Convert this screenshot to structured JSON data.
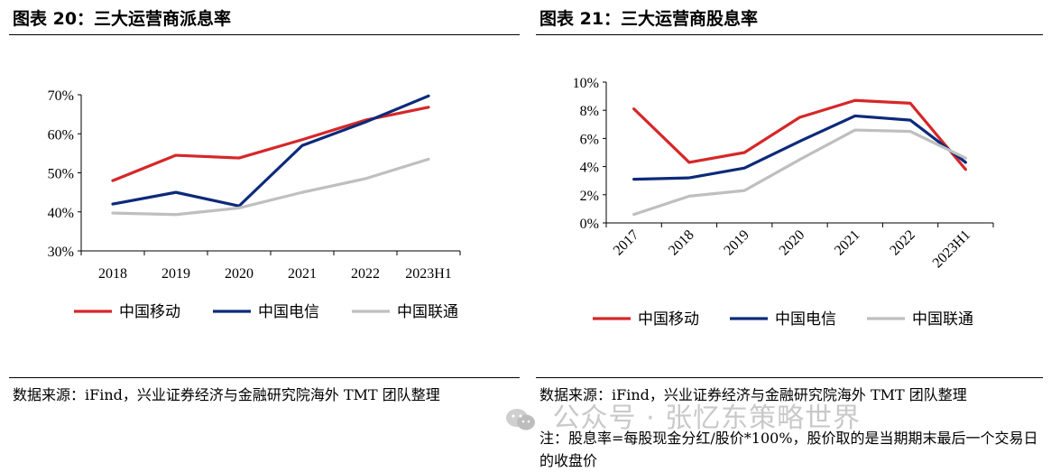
{
  "left_panel": {
    "title": "图表 20：三大运营商派息率",
    "source": "数据来源：iFind，兴业证券经济与金融研究院海外 TMT 团队整理"
  },
  "right_panel": {
    "title": "图表 21：三大运营商股息率",
    "source": "数据来源：iFind，兴业证券经济与金融研究院海外 TMT 团队整理",
    "note": "注：股息率=每股现金分红/股价*100%，股价取的是当期期末最后一个交易日的收盘价"
  },
  "watermark": "公众号 · 张忆东策略世界",
  "chart_data": [
    {
      "type": "line",
      "title": "三大运营商派息率",
      "categories": [
        "2018",
        "2019",
        "2020",
        "2021",
        "2022",
        "2023H1"
      ],
      "ylim": [
        30,
        70
      ],
      "yticks": [
        "30%",
        "40%",
        "50%",
        "60%",
        "70%"
      ],
      "ytick_values": [
        30,
        40,
        50,
        60,
        70
      ],
      "series": [
        {
          "name": "中国移动",
          "color": "#d62728",
          "values": [
            48,
            54.5,
            53.8,
            58.5,
            63.5,
            66.8
          ]
        },
        {
          "name": "中国电信",
          "color": "#0c2a7a",
          "values": [
            42,
            45,
            41.5,
            57,
            63,
            69.7
          ]
        },
        {
          "name": "中国联通",
          "color": "#bfbfbf",
          "values": [
            39.7,
            39.3,
            41,
            45,
            48.5,
            53.5
          ]
        }
      ],
      "legend_position": "bottom"
    },
    {
      "type": "line",
      "title": "三大运营商股息率",
      "categories": [
        "2017",
        "2018",
        "2019",
        "2020",
        "2021",
        "2022",
        "2023H1"
      ],
      "ylim": [
        0,
        10
      ],
      "yticks": [
        "0%",
        "2%",
        "4%",
        "6%",
        "8%",
        "10%"
      ],
      "ytick_values": [
        0,
        2,
        4,
        6,
        8,
        10
      ],
      "series": [
        {
          "name": "中国移动",
          "color": "#d62728",
          "values": [
            8.1,
            4.3,
            5.0,
            7.5,
            8.7,
            8.5,
            3.8
          ]
        },
        {
          "name": "中国电信",
          "color": "#0c2a7a",
          "values": [
            3.1,
            3.2,
            3.9,
            5.8,
            7.6,
            7.3,
            4.3
          ]
        },
        {
          "name": "中国联通",
          "color": "#bfbfbf",
          "values": [
            0.6,
            1.9,
            2.3,
            4.5,
            6.6,
            6.5,
            4.6
          ]
        }
      ],
      "legend_position": "bottom"
    }
  ]
}
